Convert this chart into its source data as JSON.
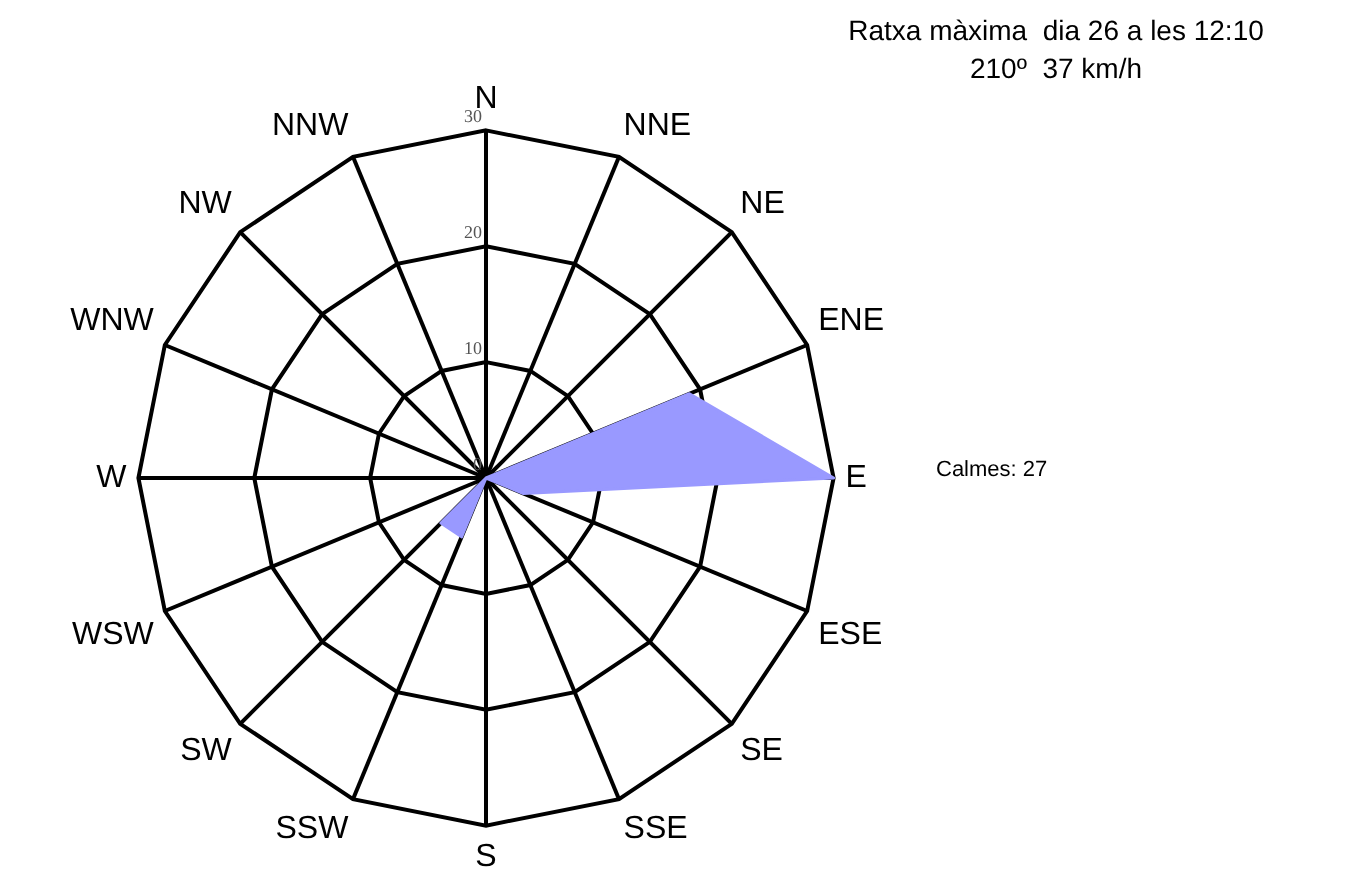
{
  "chart_data": {
    "type": "radar",
    "title": "Ratxa màxima  dia 26 a les 12:10",
    "subtitle": "210º  37 km/h",
    "annotations": [
      "Calmes: 27"
    ],
    "categories": [
      "N",
      "NNE",
      "NE",
      "ENE",
      "E",
      "ESE",
      "SE",
      "SSE",
      "S",
      "SSW",
      "SW",
      "WSW",
      "W",
      "WNW",
      "NW",
      "NNW"
    ],
    "series": [
      {
        "color": "#9999ff",
        "values": [
          0,
          0,
          0,
          19,
          30,
          3.5,
          0,
          0,
          0,
          5.5,
          5.5,
          0,
          0,
          0,
          0,
          0
        ]
      }
    ],
    "ylim": [
      0,
      30
    ],
    "yticks": [
      0,
      10,
      20,
      30
    ],
    "grid": true,
    "legend": false,
    "marker": "none"
  }
}
